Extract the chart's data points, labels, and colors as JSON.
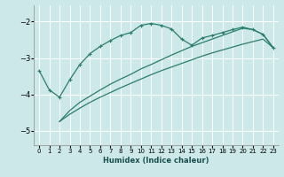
{
  "xlabel": "Humidex (Indice chaleur)",
  "bg_color": "#cce8e8",
  "grid_color": "#ffffff",
  "line_color": "#2a7d6b",
  "xlim": [
    -0.5,
    23.5
  ],
  "ylim": [
    -5.4,
    -1.55
  ],
  "yticks": [
    -5,
    -4,
    -3,
    -2
  ],
  "xticks": [
    0,
    1,
    2,
    3,
    4,
    5,
    6,
    7,
    8,
    9,
    10,
    11,
    12,
    13,
    14,
    15,
    16,
    17,
    18,
    19,
    20,
    21,
    22,
    23
  ],
  "curve_main_x": [
    0,
    1,
    2,
    3,
    4,
    5,
    6,
    7,
    8,
    9,
    10,
    11,
    12,
    13,
    14,
    15,
    16,
    17,
    18,
    19,
    20,
    21,
    22,
    23
  ],
  "curve_main_y": [
    -3.35,
    -3.88,
    -4.08,
    -3.6,
    -3.18,
    -2.88,
    -2.68,
    -2.52,
    -2.38,
    -2.3,
    -2.1,
    -2.05,
    -2.1,
    -2.2,
    -2.48,
    -2.65,
    -2.45,
    -2.38,
    -2.3,
    -2.22,
    -2.15,
    -2.22,
    -2.35,
    -2.72
  ],
  "curve_diag1_x": [
    2,
    3,
    4,
    5,
    6,
    7,
    8,
    9,
    10,
    11,
    12,
    13,
    14,
    15,
    16,
    17,
    18,
    19,
    20,
    21,
    22,
    23
  ],
  "curve_diag1_y": [
    -4.75,
    -4.45,
    -4.22,
    -4.05,
    -3.88,
    -3.72,
    -3.58,
    -3.45,
    -3.3,
    -3.18,
    -3.05,
    -2.92,
    -2.8,
    -2.68,
    -2.58,
    -2.48,
    -2.38,
    -2.28,
    -2.18,
    -2.22,
    -2.35,
    -2.72
  ],
  "curve_diag2_x": [
    2,
    3,
    4,
    5,
    6,
    7,
    8,
    9,
    10,
    11,
    12,
    13,
    14,
    15,
    16,
    17,
    18,
    19,
    20,
    21,
    22,
    23
  ],
  "curve_diag2_y": [
    -4.75,
    -4.55,
    -4.38,
    -4.22,
    -4.08,
    -3.95,
    -3.82,
    -3.7,
    -3.58,
    -3.46,
    -3.35,
    -3.25,
    -3.15,
    -3.05,
    -2.95,
    -2.86,
    -2.78,
    -2.7,
    -2.62,
    -2.55,
    -2.48,
    -2.72
  ]
}
